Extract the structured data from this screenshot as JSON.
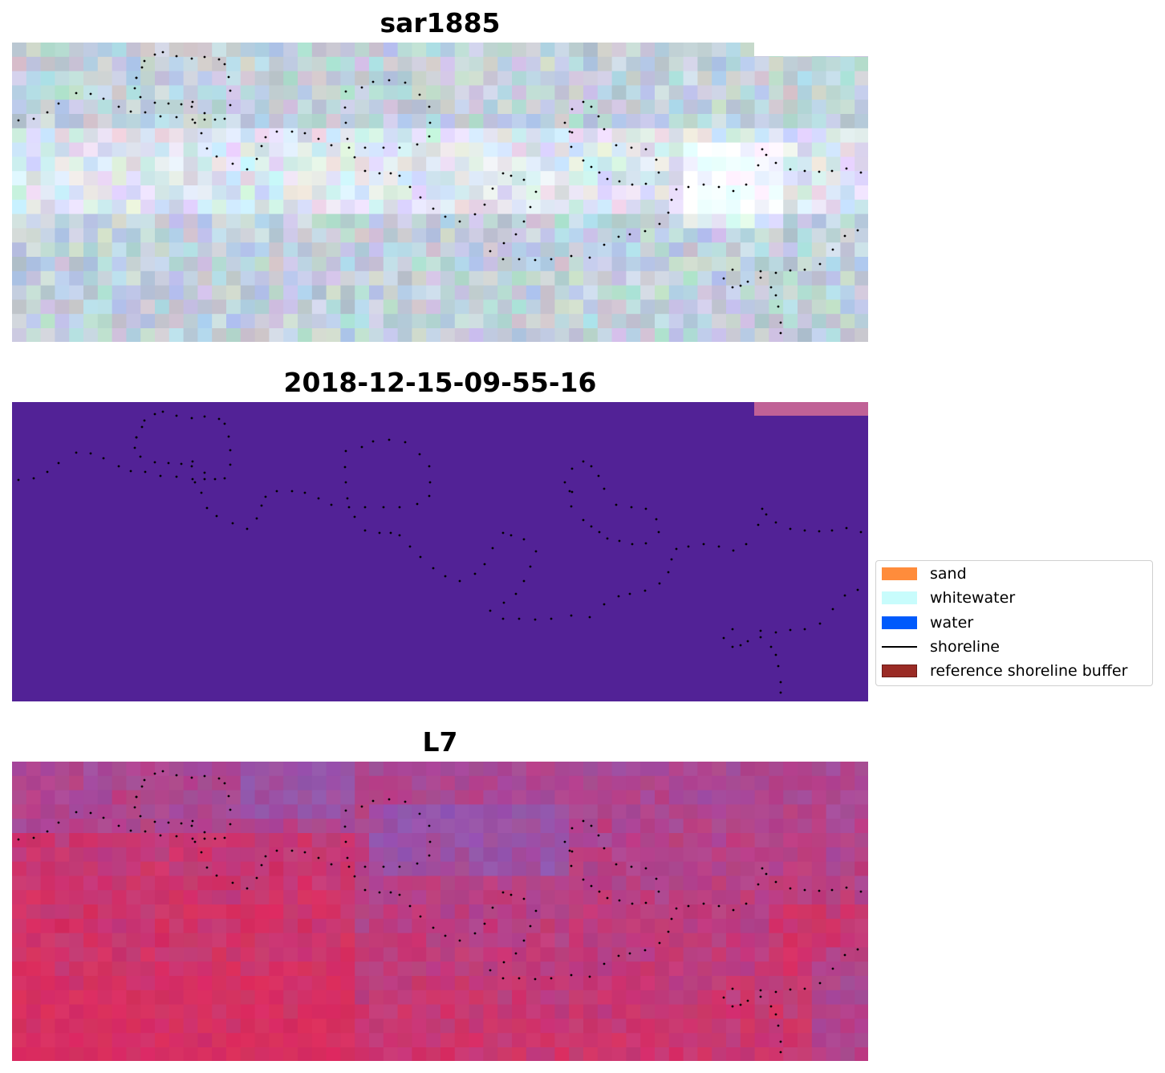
{
  "panels": [
    {
      "id": "rgb",
      "title": "sar1885"
    },
    {
      "id": "classified",
      "title": "2018-12-15-09-55-16"
    },
    {
      "id": "index",
      "title": "L7"
    }
  ],
  "legend": {
    "items": [
      {
        "label": "sand",
        "color": "#ff8c3b",
        "kind": "patch"
      },
      {
        "label": "whitewater",
        "color": "#c8fcfc",
        "kind": "patch"
      },
      {
        "label": "water",
        "color": "#005afc",
        "kind": "patch"
      },
      {
        "label": "shoreline",
        "color": "#000000",
        "kind": "line"
      },
      {
        "label": "reference shoreline buffer",
        "color": "#9a2b25",
        "kind": "patch"
      }
    ]
  },
  "colors": {
    "classified_background": "#522296",
    "classified_corner": "#c06196",
    "shoreline_dots": "#000000"
  }
}
